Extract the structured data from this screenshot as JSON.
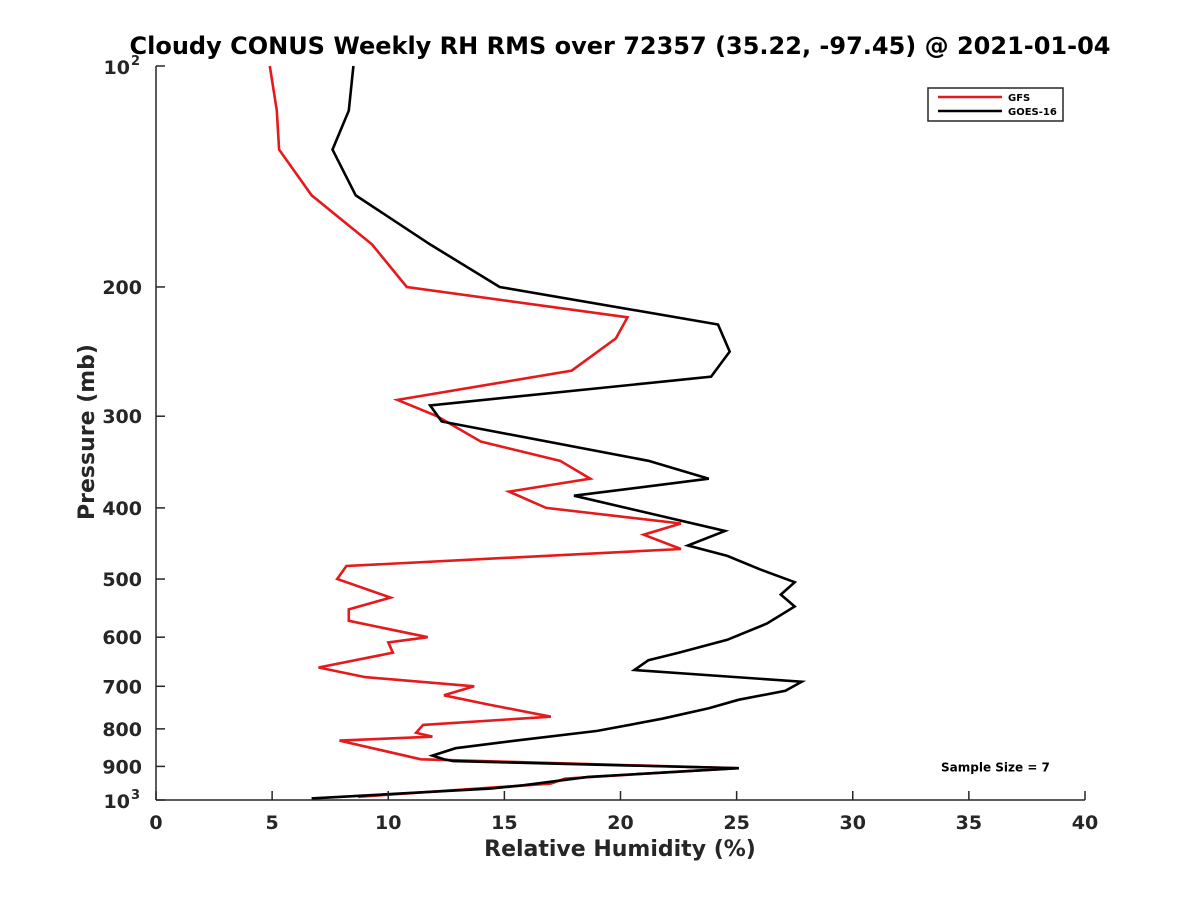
{
  "chart_data": {
    "type": "line",
    "title": "Cloudy CONUS Weekly RH RMS over 72357 (35.22, -97.45) @ 2021-01-04",
    "xlabel": "Relative Humidity (%)",
    "ylabel": "Pressure (mb)",
    "xlim": [
      0,
      40
    ],
    "ylim": [
      100,
      1000
    ],
    "y_scale": "log",
    "y_reversed": true,
    "grid": false,
    "legend_position": "top-right",
    "x_ticks": [
      0,
      5,
      10,
      15,
      20,
      25,
      30,
      35,
      40
    ],
    "y_ticks": [
      {
        "value": 100,
        "base": "10",
        "exp": "2"
      },
      {
        "value": 200,
        "label": "200"
      },
      {
        "value": 300,
        "label": "300"
      },
      {
        "value": 400,
        "label": "400"
      },
      {
        "value": 500,
        "label": "500"
      },
      {
        "value": 600,
        "label": "600"
      },
      {
        "value": 700,
        "label": "700"
      },
      {
        "value": 800,
        "label": "800"
      },
      {
        "value": 900,
        "label": "900"
      },
      {
        "value": 1000,
        "base": "10",
        "exp": "3"
      }
    ],
    "series": [
      {
        "name": "GFS",
        "color": "#e41a1c",
        "points": [
          [
            4.9,
            100
          ],
          [
            5.2,
            115
          ],
          [
            5.3,
            130
          ],
          [
            6.7,
            150
          ],
          [
            9.3,
            175
          ],
          [
            10.8,
            200
          ],
          [
            20.3,
            220
          ],
          [
            19.8,
            235
          ],
          [
            17.9,
            260
          ],
          [
            10.4,
            285
          ],
          [
            12.1,
            300
          ],
          [
            14.0,
            325
          ],
          [
            17.4,
            345
          ],
          [
            18.7,
            365
          ],
          [
            15.2,
            380
          ],
          [
            16.8,
            400
          ],
          [
            22.6,
            420
          ],
          [
            21.0,
            435
          ],
          [
            22.6,
            455
          ],
          [
            8.2,
            480
          ],
          [
            7.8,
            500
          ],
          [
            10.1,
            530
          ],
          [
            8.3,
            550
          ],
          [
            8.3,
            570
          ],
          [
            11.7,
            600
          ],
          [
            10.0,
            610
          ],
          [
            10.2,
            630
          ],
          [
            7.0,
            660
          ],
          [
            9.0,
            680
          ],
          [
            13.7,
            700
          ],
          [
            12.4,
            720
          ],
          [
            14.2,
            740
          ],
          [
            17.0,
            770
          ],
          [
            11.5,
            790
          ],
          [
            11.2,
            810
          ],
          [
            11.9,
            820
          ],
          [
            7.9,
            830
          ],
          [
            11.4,
            880
          ],
          [
            25.0,
            905
          ],
          [
            17.6,
            935
          ],
          [
            17.0,
            950
          ],
          [
            8.7,
            990
          ]
        ]
      },
      {
        "name": "GOES-16",
        "color": "#000000",
        "points": [
          [
            8.5,
            100
          ],
          [
            8.3,
            115
          ],
          [
            7.6,
            130
          ],
          [
            8.6,
            150
          ],
          [
            11.8,
            175
          ],
          [
            14.8,
            200
          ],
          [
            24.2,
            225
          ],
          [
            24.7,
            245
          ],
          [
            23.9,
            265
          ],
          [
            11.8,
            290
          ],
          [
            12.3,
            305
          ],
          [
            21.2,
            345
          ],
          [
            23.8,
            365
          ],
          [
            18.0,
            385
          ],
          [
            24.5,
            430
          ],
          [
            22.9,
            450
          ],
          [
            24.6,
            465
          ],
          [
            26.0,
            485
          ],
          [
            27.5,
            505
          ],
          [
            26.9,
            525
          ],
          [
            27.5,
            545
          ],
          [
            26.3,
            575
          ],
          [
            24.6,
            605
          ],
          [
            22.5,
            630
          ],
          [
            21.2,
            645
          ],
          [
            20.6,
            665
          ],
          [
            27.8,
            690
          ],
          [
            27.1,
            710
          ],
          [
            25.1,
            730
          ],
          [
            23.8,
            750
          ],
          [
            21.8,
            775
          ],
          [
            19.0,
            805
          ],
          [
            15.5,
            830
          ],
          [
            12.9,
            850
          ],
          [
            11.9,
            870
          ],
          [
            12.4,
            880
          ],
          [
            12.8,
            885
          ],
          [
            25.1,
            905
          ],
          [
            18.6,
            930
          ],
          [
            15.8,
            955
          ],
          [
            14.4,
            965
          ],
          [
            6.7,
            995
          ]
        ]
      }
    ],
    "annotations": [
      {
        "text": "Sample Size = 7",
        "x": 33.8,
        "y": 900
      }
    ]
  }
}
